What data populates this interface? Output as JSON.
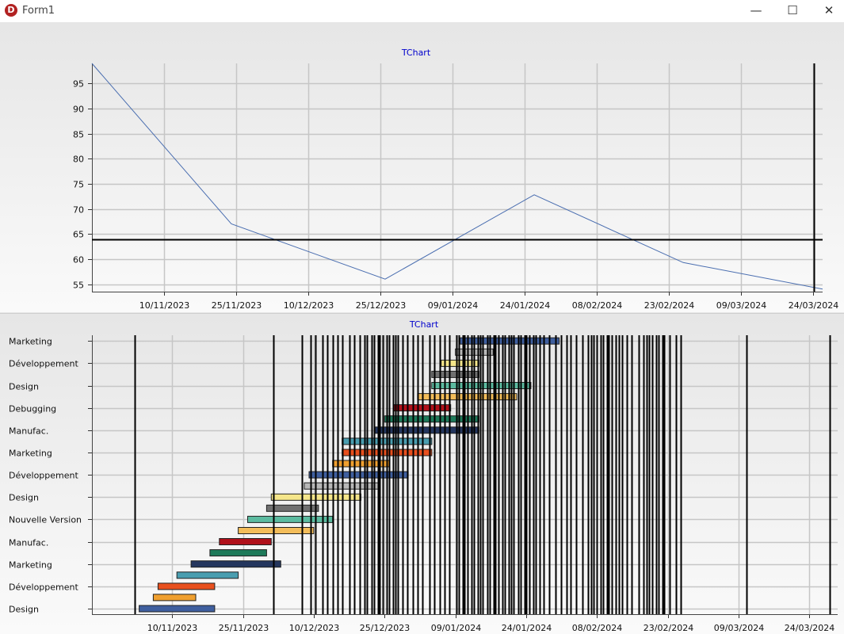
{
  "window": {
    "title": "Form1",
    "icon": "delphi-app-icon",
    "buttons": [
      "minimize-icon",
      "maximize-icon",
      "close-icon"
    ]
  },
  "chart_data": [
    {
      "type": "line",
      "title": "TChart",
      "xlabel": "",
      "ylabel": "",
      "x_ticks": [
        "10/11/2023",
        "25/11/2023",
        "10/12/2023",
        "25/12/2023",
        "09/01/2024",
        "24/01/2024",
        "08/02/2024",
        "23/02/2024",
        "09/03/2024",
        "24/03/2024"
      ],
      "y_ticks": [
        55,
        60,
        65,
        70,
        75,
        80,
        85,
        90,
        95
      ],
      "ylim": [
        53.5,
        99
      ],
      "xlim": [
        "2023-10-26",
        "2024-03-26"
      ],
      "series": [
        {
          "color": "#4a6eb0",
          "points": [
            {
              "x": "2023-10-26",
              "y": 99
            },
            {
              "x": "2023-11-24",
              "y": 67
            },
            {
              "x": "2023-12-26",
              "y": 56
            },
            {
              "x": "2024-01-26",
              "y": 72.8
            },
            {
              "x": "2024-02-26",
              "y": 59.3
            },
            {
              "x": "2024-03-26",
              "y": 54
            }
          ]
        }
      ],
      "crosshair": {
        "x": "2024-03-26",
        "y": 64
      },
      "grid": true
    },
    {
      "type": "gantt",
      "title": "TChart",
      "xlabel": "",
      "ylabel": "",
      "x_ticks": [
        "10/11/2023",
        "25/11/2023",
        "10/12/2023",
        "25/12/2023",
        "09/01/2024",
        "24/01/2024",
        "08/02/2024",
        "23/02/2024",
        "09/03/2024",
        "24/03/2024"
      ],
      "xlim": [
        "2023-10-24",
        "2024-03-30"
      ],
      "y_labels": [
        "Design",
        "Développement",
        "Marketing",
        "Manufac.",
        "Nouvelle Version",
        "Design",
        "Développement",
        "Marketing",
        "Manufac.",
        "Debugging",
        "Design",
        "Développement",
        "Marketing"
      ],
      "bars": [
        {
          "start": "2023-11-03",
          "end": "2023-11-19",
          "row": 0,
          "color": "#3f5f9f"
        },
        {
          "start": "2023-11-06",
          "end": "2023-11-15",
          "row": 0.5,
          "color": "#f0a030"
        },
        {
          "start": "2023-11-07",
          "end": "2023-11-19",
          "row": 1,
          "color": "#e8501e"
        },
        {
          "start": "2023-11-11",
          "end": "2023-11-24",
          "row": 1.5,
          "color": "#4a9eb0"
        },
        {
          "start": "2023-11-14",
          "end": "2023-12-03",
          "row": 2,
          "color": "#24365e"
        },
        {
          "start": "2023-11-18",
          "end": "2023-11-30",
          "row": 2.5,
          "color": "#1e7a5a"
        },
        {
          "start": "2023-11-20",
          "end": "2023-12-01",
          "row": 3,
          "color": "#b0101a"
        },
        {
          "start": "2023-11-24",
          "end": "2023-12-10",
          "row": 3.5,
          "color": "#f3bd5a"
        },
        {
          "start": "2023-11-26",
          "end": "2023-12-14",
          "row": 4,
          "color": "#5cbba0"
        },
        {
          "start": "2023-11-30",
          "end": "2023-12-11",
          "row": 4.5,
          "color": "#707070"
        },
        {
          "start": "2023-12-01",
          "end": "2023-12-20",
          "row": 5,
          "color": "#f5e68a"
        },
        {
          "start": "2023-12-08",
          "end": "2023-12-24",
          "row": 5.5,
          "color": "#b8b8b8"
        },
        {
          "start": "2023-12-09",
          "end": "2023-12-30",
          "row": 6,
          "color": "#3f5f9f"
        },
        {
          "start": "2023-12-14",
          "end": "2023-12-26",
          "row": 6.5,
          "color": "#f0a030"
        },
        {
          "start": "2023-12-16",
          "end": "2024-01-04",
          "row": 7,
          "color": "#e8501e"
        },
        {
          "start": "2023-12-16",
          "end": "2024-01-04",
          "row": 7.5,
          "color": "#4a9eb0"
        },
        {
          "start": "2023-12-23",
          "end": "2024-01-14",
          "row": 8,
          "color": "#24365e"
        },
        {
          "start": "2023-12-25",
          "end": "2024-01-14",
          "row": 8.5,
          "color": "#1e7a5a"
        },
        {
          "start": "2023-12-27",
          "end": "2024-01-08",
          "row": 9,
          "color": "#b0101a"
        },
        {
          "start": "2024-01-01",
          "end": "2024-01-22",
          "row": 9.5,
          "color": "#f3bd5a"
        },
        {
          "start": "2024-01-04",
          "end": "2024-01-25",
          "row": 10,
          "color": "#5cbba0"
        },
        {
          "start": "2024-01-04",
          "end": "2024-01-14",
          "row": 10.5,
          "color": "#707070"
        },
        {
          "start": "2024-01-06",
          "end": "2024-01-14",
          "row": 11,
          "color": "#f5e68a"
        },
        {
          "start": "2024-01-09",
          "end": "2024-01-17",
          "row": 11.5,
          "color": "#b8b8b8"
        },
        {
          "start": "2024-01-10",
          "end": "2024-01-31",
          "row": 12,
          "color": "#3f5f9f"
        }
      ],
      "grid": true
    }
  ]
}
